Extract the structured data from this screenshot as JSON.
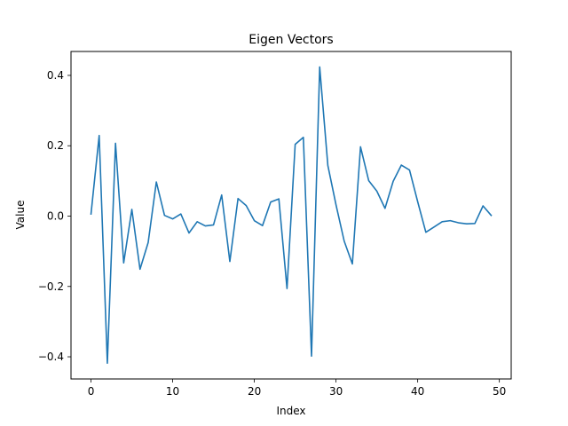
{
  "chart_data": {
    "type": "line",
    "title": "Eigen Vectors",
    "xlabel": "Index",
    "ylabel": "Value",
    "xlim": [
      -2.45,
      51.45
    ],
    "ylim": [
      -0.463,
      0.468
    ],
    "x_ticks": [
      0,
      10,
      20,
      30,
      40,
      50
    ],
    "x_tick_labels": [
      "0",
      "10",
      "20",
      "30",
      "40",
      "50"
    ],
    "y_ticks": [
      -0.4,
      -0.2,
      0.0,
      0.2,
      0.4
    ],
    "y_tick_labels": [
      "−0.4",
      "−0.2",
      "0.0",
      "0.2",
      "0.4"
    ],
    "grid": false,
    "legend": "none",
    "line_color": "#1f77b4",
    "series": [
      {
        "x": [
          0,
          1,
          2,
          3,
          4,
          5,
          6,
          7,
          8,
          9,
          10,
          11,
          12,
          13,
          14,
          15,
          16,
          17,
          18,
          19,
          20,
          21,
          22,
          23,
          24,
          25,
          26,
          27,
          28,
          29,
          30,
          31,
          32,
          33,
          34,
          35,
          36,
          37,
          38,
          39,
          40,
          41,
          42,
          43,
          44,
          45,
          46,
          47,
          48,
          49
        ],
        "values": [
          0.006,
          0.229,
          -0.418,
          0.207,
          -0.133,
          0.019,
          -0.151,
          -0.075,
          0.097,
          0.002,
          -0.008,
          0.006,
          -0.048,
          -0.016,
          -0.028,
          -0.025,
          0.06,
          -0.129,
          0.05,
          0.03,
          -0.013,
          -0.027,
          0.04,
          0.049,
          -0.206,
          0.204,
          0.224,
          -0.398,
          0.424,
          0.144,
          0.032,
          -0.071,
          -0.136,
          0.197,
          0.101,
          0.071,
          0.022,
          0.099,
          0.145,
          0.131,
          0.041,
          -0.046,
          -0.031,
          -0.016,
          -0.013,
          -0.019,
          -0.022,
          -0.021,
          0.029,
          0.002
        ]
      }
    ]
  }
}
